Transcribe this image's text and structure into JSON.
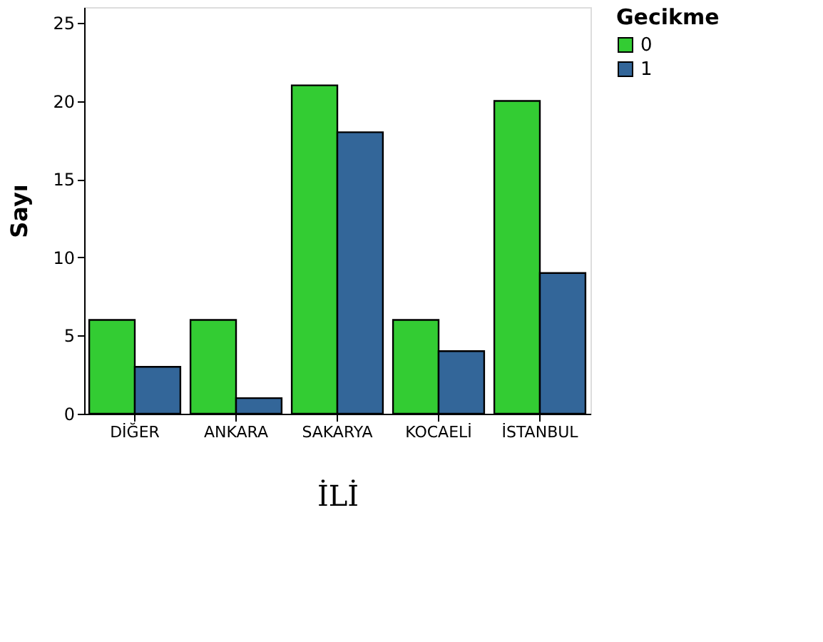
{
  "chart_data": {
    "type": "bar",
    "xlabel": "İLİ",
    "ylabel": "Sayı",
    "legend_title": "Gecikme",
    "legend": "top right",
    "categories": [
      "DİĞER",
      "ANKARA",
      "SAKARYA",
      "KOCAELİ",
      "İSTANBUL"
    ],
    "series": [
      {
        "name": "0",
        "color": "#33cc33",
        "values": [
          6,
          6,
          21,
          6,
          20
        ]
      },
      {
        "name": "1",
        "color": "#336699",
        "values": [
          3,
          1,
          18,
          4,
          9
        ]
      }
    ],
    "ylim": [
      0,
      26
    ],
    "yticks": [
      0,
      5,
      10,
      15,
      20,
      25
    ],
    "grid": false
  }
}
